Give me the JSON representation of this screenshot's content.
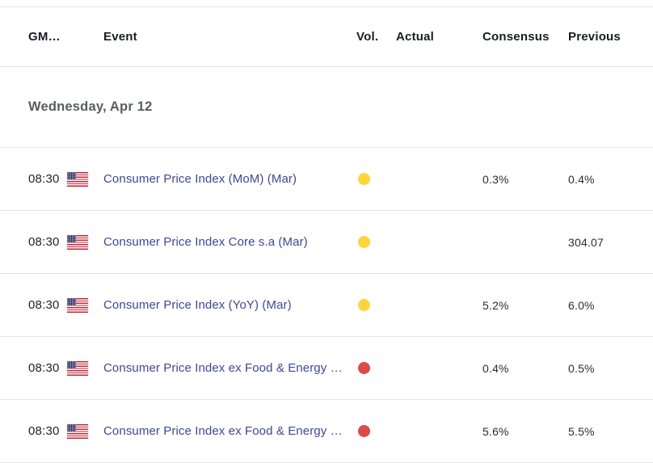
{
  "calendar": {
    "headers": {
      "gmt": "GM…",
      "event": "Event",
      "vol": "Vol.",
      "actual": "Actual",
      "consensus": "Consensus",
      "previous": "Previous"
    },
    "date_group": "Wednesday, Apr 12",
    "colors": {
      "volatility_medium": "#ffd43d",
      "volatility_high": "#dc4a49",
      "event_link": "#3f4795"
    },
    "rows": [
      {
        "time": "08:30",
        "country_flag": "us-flag",
        "event": "Consumer Price Index (MoM) (Mar)",
        "volatility": "medium",
        "vol_color": "#ffd43d",
        "actual": "",
        "consensus": "0.3%",
        "previous": "0.4%"
      },
      {
        "time": "08:30",
        "country_flag": "us-flag",
        "event": "Consumer Price Index Core s.a (Mar)",
        "volatility": "medium",
        "vol_color": "#ffd43d",
        "actual": "",
        "consensus": "",
        "previous": "304.07"
      },
      {
        "time": "08:30",
        "country_flag": "us-flag",
        "event": "Consumer Price Index (YoY) (Mar)",
        "volatility": "medium",
        "vol_color": "#ffd43d",
        "actual": "",
        "consensus": "5.2%",
        "previous": "6.0%"
      },
      {
        "time": "08:30",
        "country_flag": "us-flag",
        "event": "Consumer Price Index ex Food & Energy …",
        "volatility": "high",
        "vol_color": "#dc4a49",
        "actual": "",
        "consensus": "0.4%",
        "previous": "0.5%"
      },
      {
        "time": "08:30",
        "country_flag": "us-flag",
        "event": "Consumer Price Index ex Food & Energy …",
        "volatility": "high",
        "vol_color": "#dc4a49",
        "actual": "",
        "consensus": "5.6%",
        "previous": "5.5%"
      }
    ]
  }
}
